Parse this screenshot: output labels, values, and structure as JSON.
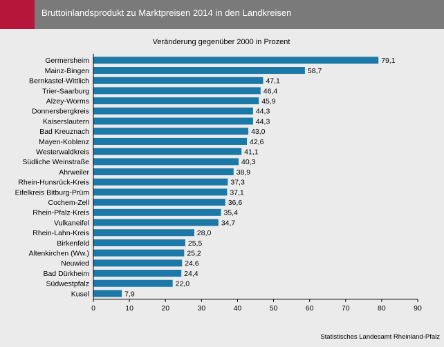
{
  "header": {
    "title": "Bruttoinlandsprodukt zu Marktpreisen 2014 in den Landkreisen"
  },
  "colors": {
    "bar": "#1b78a7",
    "header_bg": "#7a7a7a",
    "accent": "#b5163a",
    "background": "#ebebeb"
  },
  "chart_data": {
    "type": "bar",
    "orientation": "horizontal",
    "title": "",
    "subtitle": "Veränderung gegenüber 2000 in Prozent",
    "categories": [
      "Germersheim",
      "Mainz-Bingen",
      "Bernkastel-Wittlich",
      "Trier-Saarburg",
      "Alzey-Worms",
      "Donnersbergkreis",
      "Kaiserslautern",
      "Bad Kreuznach",
      "Mayen-Koblenz",
      "Westerwaldkreis",
      "Südliche Weinstraße",
      "Ahrweiler",
      "Rhein-Hunsrück-Kreis",
      "Eifelkreis Bitburg-Prüm",
      "Cochem-Zell",
      "Rhein-Pfalz-Kreis",
      "Vulkaneifel",
      "Rhein-Lahn-Kreis",
      "Birkenfeld",
      "Altenkirchen (Ww.)",
      "Neuwied",
      "Bad Dürkheim",
      "Südwestpfalz",
      "Kusel"
    ],
    "values": [
      79.1,
      58.7,
      47.1,
      46.4,
      45.9,
      44.3,
      44.3,
      43.0,
      42.6,
      41.1,
      40.3,
      38.9,
      37.3,
      37.1,
      36.6,
      35.4,
      34.7,
      28.0,
      25.5,
      25.2,
      24.6,
      24.4,
      22.0,
      7.9
    ],
    "value_labels": [
      "79,1",
      "58,7",
      "47,1",
      "46,4",
      "45,9",
      "44,3",
      "44,3",
      "43,0",
      "42,6",
      "41,1",
      "40,3",
      "38,9",
      "37,3",
      "37,1",
      "36,6",
      "35,4",
      "34,7",
      "28,0",
      "25,5",
      "25,2",
      "24,6",
      "24,4",
      "22,0",
      "7,9"
    ],
    "xlim": [
      0,
      90
    ],
    "xticks": [
      "0",
      "10",
      "20",
      "30",
      "40",
      "50",
      "60",
      "70",
      "80",
      "90"
    ],
    "grid": false,
    "legend": "none"
  },
  "source": "Statistisches Landesamt Rheinland-Pfalz"
}
